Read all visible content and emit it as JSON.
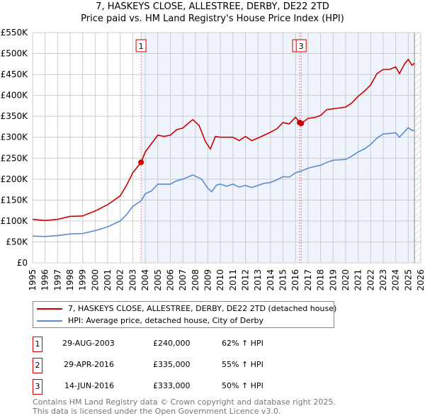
{
  "chart_data": {
    "type": "line",
    "title": "7, HASKEYS CLOSE, ALLESTREE, DERBY, DE22 2TD",
    "subtitle": "Price paid vs. HM Land Registry's House Price Index (HPI)",
    "xlim": [
      1995,
      2026
    ],
    "ylim": [
      0,
      550000
    ],
    "x_ticks": [
      "1995",
      "1996",
      "1997",
      "1998",
      "1999",
      "2000",
      "2001",
      "2002",
      "2003",
      "2004",
      "2005",
      "2006",
      "2007",
      "2008",
      "2009",
      "2010",
      "2011",
      "2012",
      "2013",
      "2014",
      "2015",
      "2016",
      "2017",
      "2018",
      "2019",
      "2020",
      "2021",
      "2022",
      "2023",
      "2024",
      "2025",
      "2026"
    ],
    "y_ticks": [
      {
        "v": 0,
        "l": "£0"
      },
      {
        "v": 50000,
        "l": "£50K"
      },
      {
        "v": 100000,
        "l": "£100K"
      },
      {
        "v": 150000,
        "l": "£150K"
      },
      {
        "v": 200000,
        "l": "£200K"
      },
      {
        "v": 250000,
        "l": "£250K"
      },
      {
        "v": 300000,
        "l": "£300K"
      },
      {
        "v": 350000,
        "l": "£350K"
      },
      {
        "v": 400000,
        "l": "£400K"
      },
      {
        "v": 450000,
        "l": "£450K"
      },
      {
        "v": 500000,
        "l": "£500K"
      },
      {
        "v": 550000,
        "l": "£550K"
      }
    ],
    "grid": true,
    "shaded_range": [
      2003.66,
      2025.5
    ],
    "hatched_from": 2025.5,
    "series": [
      {
        "name": "7, HASKEYS CLOSE, ALLESTREE, DERBY, DE22 2TD (detached house)",
        "color": "#cc0000",
        "points": [
          [
            1995,
            104
          ],
          [
            1996,
            101
          ],
          [
            1997,
            104
          ],
          [
            1998,
            111
          ],
          [
            1999,
            112
          ],
          [
            2000,
            124
          ],
          [
            2001,
            139
          ],
          [
            2002,
            160
          ],
          [
            2002.5,
            185
          ],
          [
            2003,
            215
          ],
          [
            2003.66,
            240
          ],
          [
            2004,
            265
          ],
          [
            2004.5,
            285
          ],
          [
            2005,
            305
          ],
          [
            2005.5,
            302
          ],
          [
            2006,
            305
          ],
          [
            2006.5,
            318
          ],
          [
            2007,
            322
          ],
          [
            2007.5,
            335
          ],
          [
            2007.8,
            342
          ],
          [
            2008.3,
            328
          ],
          [
            2008.8,
            290
          ],
          [
            2009.2,
            272
          ],
          [
            2009.6,
            302
          ],
          [
            2010,
            300
          ],
          [
            2010.5,
            300
          ],
          [
            2011,
            300
          ],
          [
            2011.5,
            292
          ],
          [
            2012,
            302
          ],
          [
            2012.5,
            292
          ],
          [
            2013,
            298
          ],
          [
            2013.5,
            305
          ],
          [
            2014,
            312
          ],
          [
            2014.5,
            320
          ],
          [
            2015,
            335
          ],
          [
            2015.5,
            332
          ],
          [
            2016,
            348
          ],
          [
            2016.33,
            335
          ],
          [
            2016.45,
            333
          ],
          [
            2017,
            345
          ],
          [
            2017.5,
            347
          ],
          [
            2018,
            352
          ],
          [
            2018.5,
            366
          ],
          [
            2019,
            368
          ],
          [
            2019.5,
            370
          ],
          [
            2020,
            372
          ],
          [
            2020.5,
            382
          ],
          [
            2021,
            398
          ],
          [
            2021.5,
            410
          ],
          [
            2022,
            425
          ],
          [
            2022.5,
            452
          ],
          [
            2023,
            462
          ],
          [
            2023.5,
            462
          ],
          [
            2024,
            468
          ],
          [
            2024.3,
            452
          ],
          [
            2024.7,
            475
          ],
          [
            2025,
            486
          ],
          [
            2025.3,
            472
          ],
          [
            2025.5,
            477
          ]
        ]
      },
      {
        "name": "HPI: Average price, detached house, City of Derby",
        "color": "#5b8bd0",
        "points": [
          [
            1995,
            64
          ],
          [
            1996,
            63
          ],
          [
            1997,
            65
          ],
          [
            1998,
            69
          ],
          [
            1999,
            70
          ],
          [
            2000,
            77
          ],
          [
            2001,
            86
          ],
          [
            2002,
            100
          ],
          [
            2002.5,
            115
          ],
          [
            2003,
            135
          ],
          [
            2003.66,
            148
          ],
          [
            2004,
            165
          ],
          [
            2004.5,
            172
          ],
          [
            2005,
            188
          ],
          [
            2006,
            188
          ],
          [
            2006.5,
            196
          ],
          [
            2007,
            200
          ],
          [
            2007.8,
            210
          ],
          [
            2008.5,
            200
          ],
          [
            2009,
            178
          ],
          [
            2009.3,
            170
          ],
          [
            2009.7,
            186
          ],
          [
            2010,
            188
          ],
          [
            2010.5,
            183
          ],
          [
            2011,
            188
          ],
          [
            2011.5,
            181
          ],
          [
            2012,
            185
          ],
          [
            2012.5,
            180
          ],
          [
            2013,
            185
          ],
          [
            2013.5,
            190
          ],
          [
            2014,
            192
          ],
          [
            2014.5,
            198
          ],
          [
            2015,
            206
          ],
          [
            2015.5,
            205
          ],
          [
            2016,
            215
          ],
          [
            2016.5,
            220
          ],
          [
            2017,
            226
          ],
          [
            2017.5,
            230
          ],
          [
            2018,
            233
          ],
          [
            2018.5,
            240
          ],
          [
            2019,
            245
          ],
          [
            2019.5,
            246
          ],
          [
            2020,
            247
          ],
          [
            2020.5,
            255
          ],
          [
            2021,
            265
          ],
          [
            2021.5,
            272
          ],
          [
            2022,
            283
          ],
          [
            2022.5,
            298
          ],
          [
            2023,
            308
          ],
          [
            2023.5,
            309
          ],
          [
            2024,
            311
          ],
          [
            2024.3,
            300
          ],
          [
            2024.7,
            313
          ],
          [
            2025,
            323
          ],
          [
            2025.3,
            316
          ],
          [
            2025.5,
            317
          ]
        ]
      }
    ],
    "sales": [
      {
        "n": "1",
        "x": 2003.66,
        "y": 240,
        "date": "29-AUG-2003",
        "price": "£240,000",
        "hpi": "62% ↑ HPI"
      },
      {
        "n": "2",
        "x": 2016.33,
        "y": 335,
        "date": "29-APR-2016",
        "price": "£335,000",
        "hpi": "55% ↑ HPI"
      },
      {
        "n": "3",
        "x": 2016.45,
        "y": 333,
        "date": "14-JUN-2016",
        "price": "£333,000",
        "hpi": "50% ↑ HPI"
      }
    ]
  },
  "footer": {
    "line1": "Contains HM Land Registry data © Crown copyright and database right 2025.",
    "line2": "This data is licensed under the Open Government Licence v3.0."
  }
}
